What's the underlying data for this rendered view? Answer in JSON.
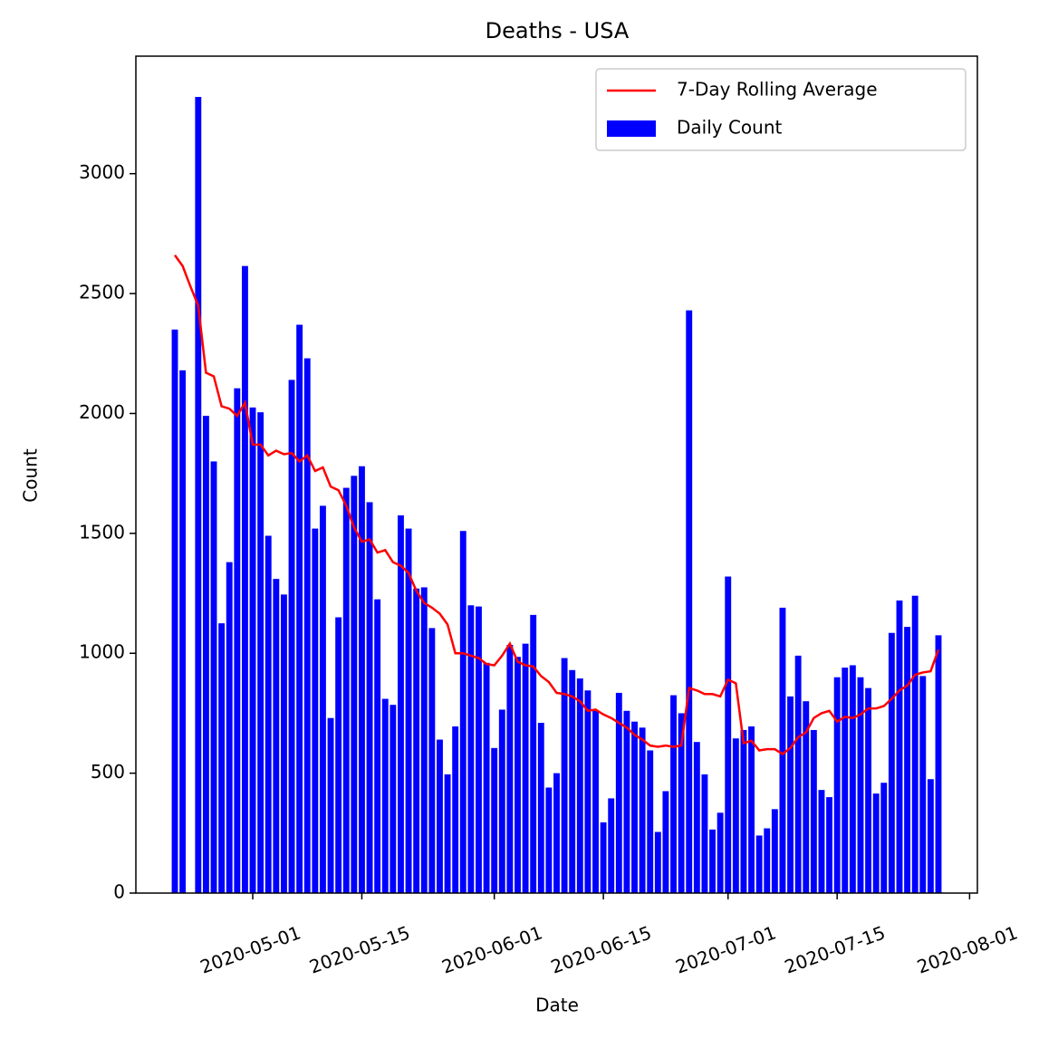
{
  "chart_data": {
    "type": "bar",
    "title": "Deaths - USA",
    "xlabel": "Date",
    "ylabel": "Count",
    "x": [
      "2020-04-21",
      "2020-04-22",
      "2020-04-23",
      "2020-04-24",
      "2020-04-25",
      "2020-04-26",
      "2020-04-27",
      "2020-04-28",
      "2020-04-29",
      "2020-04-30",
      "2020-05-01",
      "2020-05-02",
      "2020-05-03",
      "2020-05-04",
      "2020-05-05",
      "2020-05-06",
      "2020-05-07",
      "2020-05-08",
      "2020-05-09",
      "2020-05-10",
      "2020-05-11",
      "2020-05-12",
      "2020-05-13",
      "2020-05-14",
      "2020-05-15",
      "2020-05-16",
      "2020-05-17",
      "2020-05-18",
      "2020-05-19",
      "2020-05-20",
      "2020-05-21",
      "2020-05-22",
      "2020-05-23",
      "2020-05-24",
      "2020-05-25",
      "2020-05-26",
      "2020-05-27",
      "2020-05-28",
      "2020-05-29",
      "2020-05-30",
      "2020-05-31",
      "2020-06-01",
      "2020-06-02",
      "2020-06-03",
      "2020-06-04",
      "2020-06-05",
      "2020-06-06",
      "2020-06-07",
      "2020-06-08",
      "2020-06-09",
      "2020-06-10",
      "2020-06-11",
      "2020-06-12",
      "2020-06-13",
      "2020-06-14",
      "2020-06-15",
      "2020-06-16",
      "2020-06-17",
      "2020-06-18",
      "2020-06-19",
      "2020-06-20",
      "2020-06-21",
      "2020-06-22",
      "2020-06-23",
      "2020-06-24",
      "2020-06-25",
      "2020-06-26",
      "2020-06-27",
      "2020-06-28",
      "2020-06-29",
      "2020-06-30",
      "2020-07-01",
      "2020-07-02",
      "2020-07-03",
      "2020-07-04",
      "2020-07-05",
      "2020-07-06",
      "2020-07-07",
      "2020-07-08",
      "2020-07-09",
      "2020-07-10",
      "2020-07-11",
      "2020-07-12",
      "2020-07-13",
      "2020-07-14",
      "2020-07-15",
      "2020-07-16",
      "2020-07-17",
      "2020-07-18",
      "2020-07-19",
      "2020-07-20",
      "2020-07-21",
      "2020-07-22",
      "2020-07-23",
      "2020-07-24",
      "2020-07-25",
      "2020-07-26",
      "2020-07-27",
      "2020-07-28"
    ],
    "series": [
      {
        "name": "7-Day Rolling Average",
        "type": "line",
        "color": "#ff0000",
        "values": [
          2660,
          2615,
          2530,
          2450,
          2170,
          2155,
          2030,
          2020,
          1990,
          2045,
          1870,
          1870,
          1825,
          1845,
          1830,
          1835,
          1800,
          1825,
          1760,
          1775,
          1695,
          1680,
          1615,
          1525,
          1465,
          1475,
          1420,
          1430,
          1380,
          1365,
          1335,
          1260,
          1210,
          1190,
          1165,
          1120,
          1000,
          1000,
          990,
          980,
          955,
          950,
          990,
          1040,
          965,
          950,
          945,
          905,
          880,
          835,
          830,
          820,
          800,
          760,
          765,
          745,
          730,
          710,
          690,
          660,
          640,
          615,
          610,
          615,
          610,
          615,
          855,
          845,
          830,
          830,
          820,
          890,
          875,
          625,
          635,
          595,
          600,
          600,
          580,
          605,
          650,
          670,
          730,
          750,
          760,
          715,
          735,
          730,
          745,
          770,
          770,
          780,
          810,
          845,
          865,
          910,
          920,
          925,
          1015
        ]
      },
      {
        "name": "Daily Count",
        "type": "bar",
        "color": "#0000ff",
        "values": [
          2350,
          2180,
          null,
          3320,
          1990,
          1800,
          1125,
          1380,
          2105,
          2615,
          2025,
          2005,
          1490,
          1310,
          1245,
          2140,
          2370,
          2230,
          1520,
          1615,
          730,
          1150,
          1690,
          1740,
          1780,
          1630,
          1225,
          810,
          785,
          1575,
          1520,
          1270,
          1275,
          1105,
          640,
          495,
          695,
          1510,
          1200,
          1195,
          960,
          605,
          765,
          1035,
          985,
          1040,
          1160,
          710,
          440,
          500,
          980,
          930,
          895,
          845,
          760,
          295,
          395,
          835,
          760,
          715,
          690,
          595,
          255,
          425,
          825,
          750,
          2430,
          630,
          495,
          265,
          335,
          1320,
          645,
          680,
          695,
          240,
          270,
          350,
          1190,
          820,
          990,
          800,
          680,
          430,
          400,
          900,
          940,
          950,
          900,
          855,
          415,
          460,
          1085,
          1220,
          1110,
          1240,
          905,
          475,
          1075
        ]
      }
    ],
    "xlim": [
      "2020-04-16",
      "2020-08-02"
    ],
    "xticks": [
      "2020-05-01",
      "2020-05-15",
      "2020-06-01",
      "2020-06-15",
      "2020-07-01",
      "2020-07-15",
      "2020-08-01"
    ],
    "ylim": [
      0,
      3490
    ],
    "yticks": [
      0,
      500,
      1000,
      1500,
      2000,
      2500,
      3000
    ],
    "legend": "upper right"
  }
}
